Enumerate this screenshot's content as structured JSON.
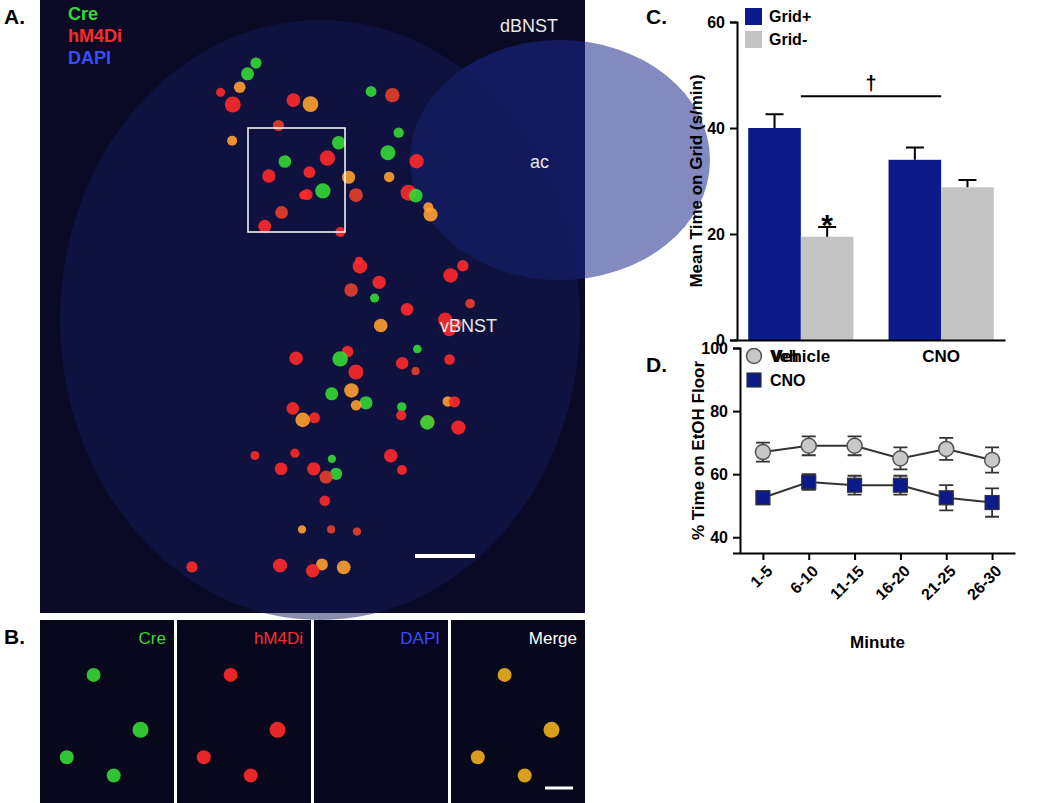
{
  "image_panels": [
    {
      "label": "A.",
      "channels": [
        {
          "name": "Cre",
          "color": "#35d935"
        },
        {
          "name": "hM4Di",
          "color": "#ff2a2a"
        },
        {
          "name": "DAPI",
          "color": "#3a4cff"
        }
      ],
      "regions": [
        "dBNST",
        "ac",
        "vBNST"
      ]
    },
    {
      "label": "B.",
      "tiles": [
        {
          "name": "Cre",
          "color": "#35d935"
        },
        {
          "name": "hM4Di",
          "color": "#ff2a2a"
        },
        {
          "name": "DAPI",
          "color": "#3a4cff"
        },
        {
          "name": "Merge",
          "color": "#ffffff"
        }
      ]
    }
  ],
  "chart_data": [
    {
      "type": "bar",
      "title": "C.",
      "categories": [
        "Vehicle",
        "CNO"
      ],
      "series": [
        {
          "name": "Grid+",
          "color": "#0c1a8a",
          "values": [
            40,
            34
          ],
          "errors": [
            2.6,
            2.3
          ]
        },
        {
          "name": "Grid-",
          "color": "#c4c4c4",
          "values": [
            19.5,
            28.8
          ],
          "errors": [
            1.8,
            1.4
          ]
        }
      ],
      "y_label": "Mean Time on Grid (s/min)",
      "ylim": [
        0,
        60
      ],
      "yticks": [
        0,
        20,
        40,
        60
      ],
      "legend": "top-left",
      "annotations": [
        {
          "text": "*"
        },
        {
          "text": "†"
        }
      ]
    },
    {
      "type": "line",
      "title": "D.",
      "categories": [
        "1-5",
        "6-10",
        "11-15",
        "16-20",
        "21-25",
        "26-30"
      ],
      "series": [
        {
          "name": "Veh",
          "color": "#c8c8c8",
          "marker": "circle",
          "values": [
            67,
            69,
            69,
            65,
            68,
            64.5
          ],
          "errors": [
            3,
            3,
            3,
            3.5,
            3.5,
            4
          ]
        },
        {
          "name": "CNO",
          "color": "#0c1a8a",
          "marker": "square",
          "values": [
            52.5,
            57.5,
            56.5,
            56.5,
            52.5,
            51
          ],
          "errors": [
            2,
            2.5,
            3,
            3,
            4,
            4.5
          ]
        }
      ],
      "x_label": "Minute",
      "y_label": "% Time on EtOH Floor",
      "ylim": [
        35,
        100
      ],
      "yticks": [
        40,
        60,
        80,
        100
      ],
      "legend": "top-left"
    }
  ]
}
